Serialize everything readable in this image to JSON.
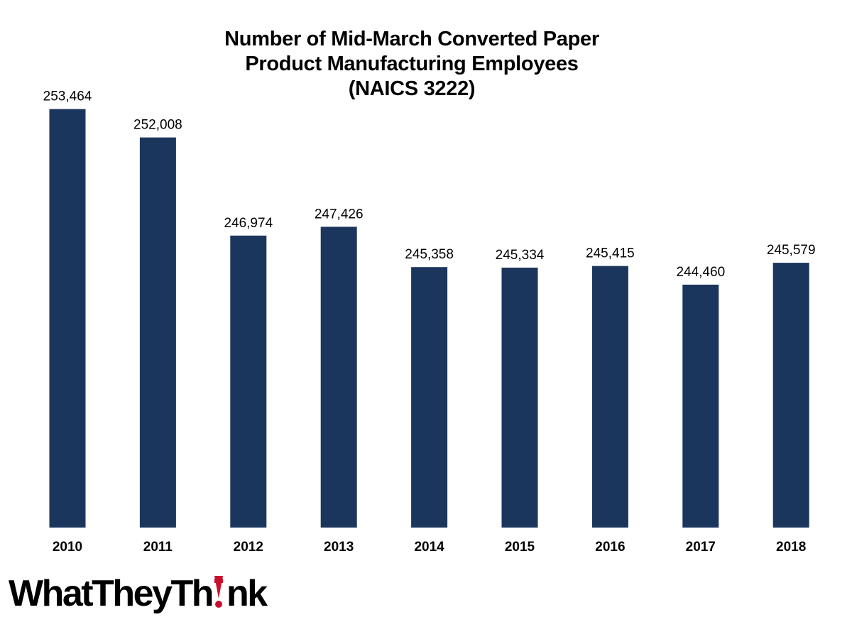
{
  "chart_data": {
    "type": "bar",
    "title_lines": [
      "Number of Mid-March Converted Paper",
      "Product Manufacturing Employees",
      "(NAICS 3222)"
    ],
    "categories": [
      "2010",
      "2011",
      "2012",
      "2013",
      "2014",
      "2015",
      "2016",
      "2017",
      "2018"
    ],
    "values": [
      253464,
      252008,
      246974,
      247426,
      245358,
      245334,
      245415,
      244460,
      245579
    ],
    "value_labels": [
      "253,464",
      "252,008",
      "246,974",
      "247,426",
      "245,358",
      "245,334",
      "245,415",
      "244,460",
      "245,579"
    ],
    "xlabel": "",
    "ylabel": "",
    "ylim": [
      232000,
      256000
    ],
    "grid": false,
    "legend": "none",
    "bar_color": "#1b365d"
  },
  "logo": {
    "text_before": "WhatTheyTh",
    "text_after": "nk",
    "accent_color": "#c8102e"
  }
}
